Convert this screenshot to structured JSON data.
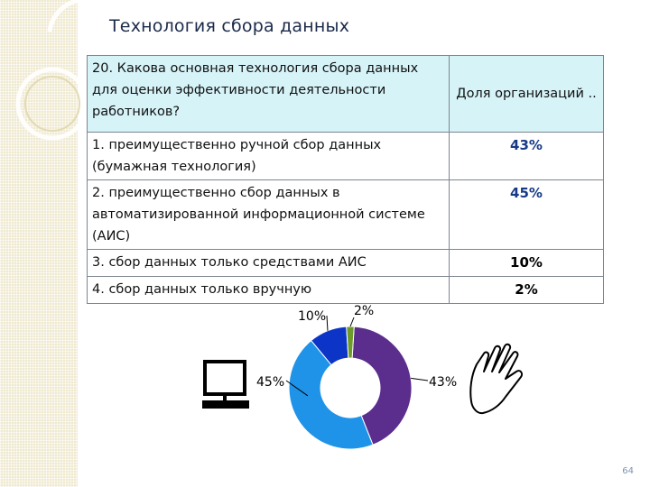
{
  "title": "Технология сбора данных",
  "table": {
    "question": "20. Какова основная технология сбора данных для оценки эффективности деятельности работников?",
    "share_header": "Доля организаций ..",
    "rows": [
      {
        "label": "1. преимущественно ручной сбор данных (бумажная технология)",
        "value": "43%"
      },
      {
        "label": "2. преимущественно сбор данных в автоматизированной информационной системе (АИС)",
        "value": "45%"
      },
      {
        "label": "3. сбор данных только средствами АИС",
        "value": "10%"
      },
      {
        "label": "4. сбор данных только вручную",
        "value": "2%"
      }
    ]
  },
  "chart_data": {
    "type": "pie",
    "variant": "donut",
    "categories": [
      "1. преимущественно ручной сбор данных (бумажная технология)",
      "2. преимущественно сбор данных в автоматизированной информационной системе (АИС)",
      "3. сбор данных только средствами АИС",
      "4. сбор данных только вручную"
    ],
    "values": [
      43,
      45,
      10,
      2
    ],
    "labels": [
      "43%",
      "45%",
      "10%",
      "2%"
    ],
    "colors": [
      "#5b2d8c",
      "#1f93e8",
      "#0c35c8",
      "#6e9a2a"
    ],
    "legend": "none"
  },
  "icons": [
    "computer-icon",
    "hand-icon"
  ],
  "page_number": "64"
}
